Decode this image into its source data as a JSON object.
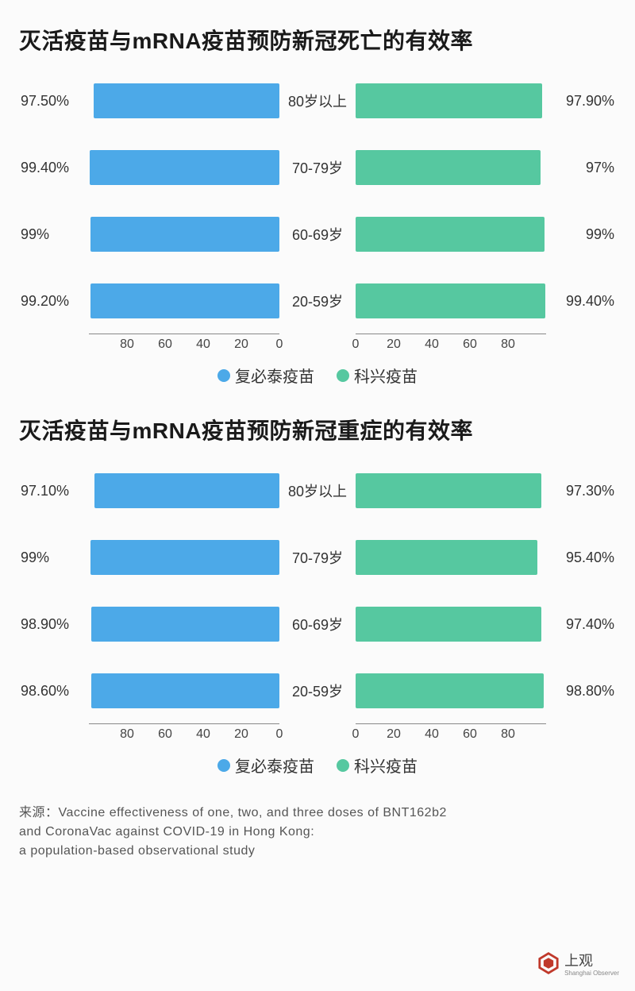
{
  "colors": {
    "left_bar": "#4ca9e8",
    "right_bar": "#56c8a0",
    "background": "#fbfbfb",
    "axis": "#888888",
    "text": "#333333",
    "title": "#1a1a1a",
    "logo": "#c0392b"
  },
  "typography": {
    "title_fontsize": 28,
    "label_fontsize": 18,
    "legend_fontsize": 20,
    "source_fontsize": 16
  },
  "axis": {
    "min": 0,
    "max": 100,
    "ticks_left": [
      80,
      60,
      40,
      20,
      0
    ],
    "ticks_right": [
      0,
      20,
      40,
      60,
      80
    ]
  },
  "legend": {
    "left": "复必泰疫苗",
    "right": "科兴疫苗"
  },
  "charts": [
    {
      "title": "灭活疫苗与mRNA疫苗预防新冠死亡的有效率",
      "rows": [
        {
          "category": "80岁以上",
          "left_value": 97.5,
          "left_label": "97.50%",
          "right_value": 97.9,
          "right_label": "97.90%"
        },
        {
          "category": "70-79岁",
          "left_value": 99.4,
          "left_label": "99.40%",
          "right_value": 97.0,
          "right_label": "97%"
        },
        {
          "category": "60-69岁",
          "left_value": 99.0,
          "left_label": "99%",
          "right_value": 99.0,
          "right_label": "99%"
        },
        {
          "category": "20-59岁",
          "left_value": 99.2,
          "left_label": "99.20%",
          "right_value": 99.4,
          "right_label": "99.40%"
        }
      ]
    },
    {
      "title": "灭活疫苗与mRNA疫苗预防新冠重症的有效率",
      "rows": [
        {
          "category": "80岁以上",
          "left_value": 97.1,
          "left_label": "97.10%",
          "right_value": 97.3,
          "right_label": "97.30%"
        },
        {
          "category": "70-79岁",
          "left_value": 99.0,
          "left_label": "99%",
          "right_value": 95.4,
          "right_label": "95.40%"
        },
        {
          "category": "60-69岁",
          "left_value": 98.9,
          "left_label": "98.90%",
          "right_value": 97.4,
          "right_label": "97.40%"
        },
        {
          "category": "20-59岁",
          "left_value": 98.6,
          "left_label": "98.60%",
          "right_value": 98.8,
          "right_label": "98.80%"
        }
      ]
    }
  ],
  "source": {
    "prefix": "来源：",
    "line1": "Vaccine effectiveness of one, two, and three doses of BNT162b2",
    "line2": " and CoronaVac against COVID-19 in Hong Kong:",
    "line3": "a population-based observational study"
  },
  "logo": {
    "text": "上观",
    "sub": "Shanghai Observer"
  }
}
